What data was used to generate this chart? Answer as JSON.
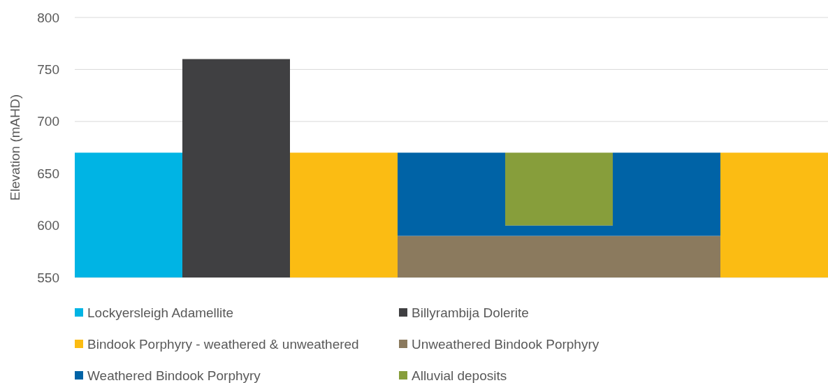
{
  "chart_data": {
    "type": "bar",
    "ylabel": "Elevation (mAHD)",
    "categories": [
      null,
      null,
      null,
      null,
      null,
      null,
      null
    ],
    "series": [
      {
        "name": "Lockyersleigh Adamellite",
        "color": "#00b4e4",
        "base": [
          550,
          null,
          null,
          null,
          null,
          null,
          null
        ],
        "values": [
          120,
          null,
          null,
          null,
          null,
          null,
          null
        ]
      },
      {
        "name": "Billyrambija Dolerite",
        "color": "#404042",
        "base": [
          null,
          550,
          null,
          null,
          null,
          null,
          null
        ],
        "values": [
          null,
          210,
          null,
          null,
          null,
          null,
          null
        ]
      },
      {
        "name": "Bindook Porphyry - weathered & unweathered",
        "color": "#fbbc13",
        "base": [
          null,
          null,
          550,
          null,
          null,
          null,
          550
        ],
        "values": [
          null,
          null,
          120,
          null,
          null,
          null,
          120
        ]
      },
      {
        "name": "Unweathered Bindook Porphyry",
        "color": "#8b7a5e",
        "base": [
          null,
          null,
          null,
          550,
          550,
          550,
          null
        ],
        "values": [
          null,
          null,
          null,
          40,
          40,
          40,
          null
        ]
      },
      {
        "name": "Weathered Bindook Porphyry",
        "color": "#0063a6",
        "base": [
          null,
          null,
          null,
          590,
          590,
          590,
          null
        ],
        "values": [
          null,
          null,
          null,
          80,
          10,
          80,
          null
        ]
      },
      {
        "name": "Alluvial deposits",
        "color": "#879e3b",
        "base": [
          null,
          null,
          null,
          null,
          600,
          null,
          null
        ],
        "values": [
          null,
          null,
          null,
          null,
          70,
          null,
          null
        ]
      }
    ],
    "ylim": [
      550,
      800
    ],
    "yticks": [
      550,
      600,
      650,
      700,
      750,
      800
    ],
    "grid": "y",
    "legend": "bottom"
  }
}
